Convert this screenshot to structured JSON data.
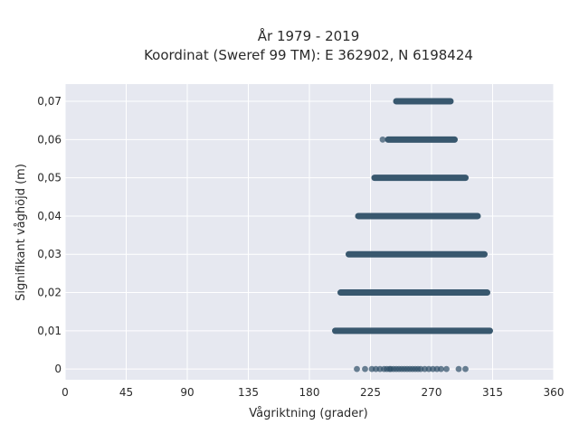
{
  "chart_data": {
    "type": "scatter",
    "title": "År 1979 - 2019",
    "subtitle": "Koordinat (Sweref 99 TM): E 362902, N 6198424",
    "xlabel": "Vågriktning (grader)",
    "ylabel": "Signifikant våghöjd (m)",
    "xlim": [
      0,
      360
    ],
    "ylim": [
      -0.0028,
      0.0745
    ],
    "x_ticks": [
      0,
      45,
      90,
      135,
      180,
      225,
      270,
      315,
      360
    ],
    "x_tick_labels": [
      "0",
      "45",
      "90",
      "135",
      "180",
      "225",
      "270",
      "315",
      "360"
    ],
    "y_ticks": [
      0,
      0.01,
      0.02,
      0.03,
      0.04,
      0.05,
      0.06,
      0.07
    ],
    "y_tick_labels": [
      "0",
      "0,01",
      "0,02",
      "0,03",
      "0,04",
      "0,05",
      "0,06",
      "0,07"
    ],
    "grid": true,
    "background": "#e6e8f0",
    "grid_color": "#ffffff",
    "marker_color": "#2e4f66",
    "bands": [
      {
        "y": 0.07,
        "x_min": 244,
        "x_max": 284
      },
      {
        "y": 0.06,
        "x_min": 238,
        "x_max": 287
      },
      {
        "y": 0.05,
        "x_min": 228,
        "x_max": 295
      },
      {
        "y": 0.04,
        "x_min": 216,
        "x_max": 304
      },
      {
        "y": 0.03,
        "x_min": 209,
        "x_max": 309
      },
      {
        "y": 0.02,
        "x_min": 203,
        "x_max": 311
      },
      {
        "y": 0.01,
        "x_min": 199,
        "x_max": 313
      }
    ],
    "points": [
      {
        "x": 234,
        "y": 0.06
      },
      {
        "x": 215,
        "y": 0
      },
      {
        "x": 221,
        "y": 0
      },
      {
        "x": 226,
        "y": 0
      },
      {
        "x": 229,
        "y": 0
      },
      {
        "x": 232,
        "y": 0
      },
      {
        "x": 235,
        "y": 0
      },
      {
        "x": 237,
        "y": 0
      },
      {
        "x": 239,
        "y": 0
      },
      {
        "x": 240,
        "y": 0
      },
      {
        "x": 242,
        "y": 0
      },
      {
        "x": 244,
        "y": 0
      },
      {
        "x": 246,
        "y": 0
      },
      {
        "x": 248,
        "y": 0
      },
      {
        "x": 250,
        "y": 0
      },
      {
        "x": 252,
        "y": 0
      },
      {
        "x": 254,
        "y": 0
      },
      {
        "x": 256,
        "y": 0
      },
      {
        "x": 258,
        "y": 0
      },
      {
        "x": 260,
        "y": 0
      },
      {
        "x": 262,
        "y": 0
      },
      {
        "x": 265,
        "y": 0
      },
      {
        "x": 268,
        "y": 0
      },
      {
        "x": 271,
        "y": 0
      },
      {
        "x": 274,
        "y": 0
      },
      {
        "x": 277,
        "y": 0
      },
      {
        "x": 281,
        "y": 0
      },
      {
        "x": 290,
        "y": 0
      },
      {
        "x": 295,
        "y": 0
      }
    ]
  }
}
